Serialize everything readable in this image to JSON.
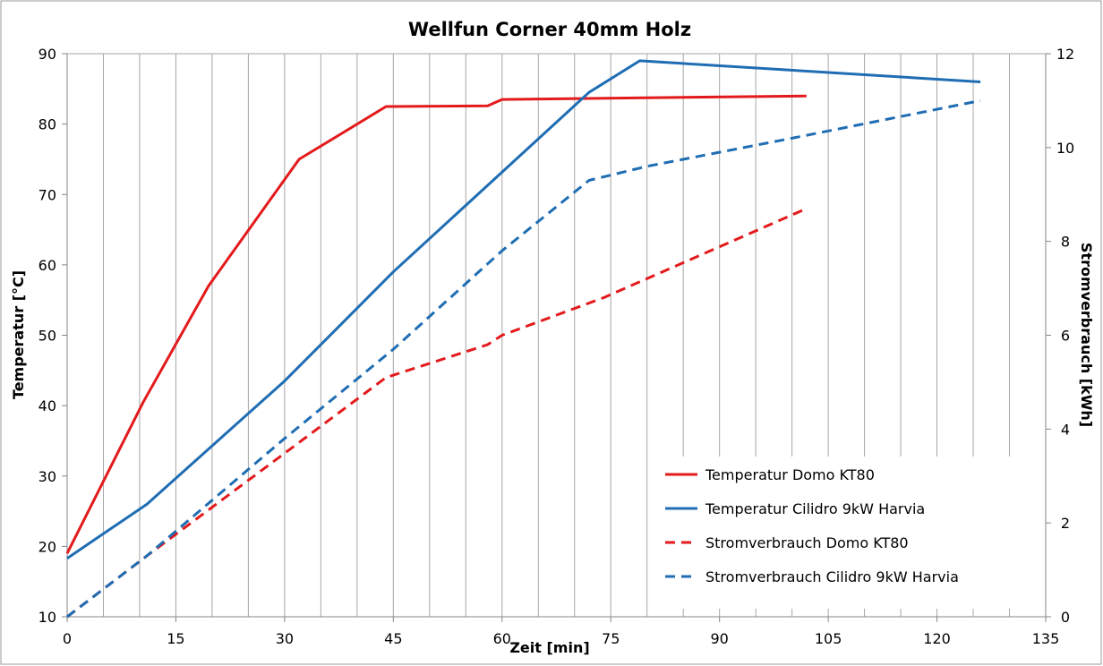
{
  "chart_data": {
    "type": "line",
    "title": "Wellfun Corner 40mm Holz",
    "xlabel": "Zeit [min]",
    "ylabel": "Temperatur  [°C]",
    "y2label": "Stromverbrauch  [kWh]",
    "xlim": [
      0,
      135
    ],
    "ylim": [
      10,
      90
    ],
    "y2lim": [
      0,
      12
    ],
    "xticks": [
      0,
      15,
      30,
      45,
      60,
      75,
      90,
      105,
      120,
      135
    ],
    "yticks": [
      10,
      20,
      30,
      40,
      50,
      60,
      70,
      80,
      90
    ],
    "y2ticks": [
      0,
      2,
      4,
      6,
      8,
      10,
      12
    ],
    "x_minor_step": 5,
    "grid": "vertical",
    "legend_position": "bottom-right",
    "series": [
      {
        "name": "Temperatur Domo KT80",
        "axis": "left",
        "color": "#e31a1c",
        "dash": "solid",
        "points": [
          [
            0,
            19
          ],
          [
            10.5,
            40.5
          ],
          [
            19.5,
            57
          ],
          [
            32,
            75
          ],
          [
            44,
            82.5
          ],
          [
            58,
            82.6
          ],
          [
            60,
            83.5
          ],
          [
            102,
            84
          ]
        ]
      },
      {
        "name": "Temperatur Cilidro 9kW Harvia",
        "axis": "left",
        "color": "#1f6db3",
        "dash": "solid",
        "points": [
          [
            0,
            18.3
          ],
          [
            11,
            26
          ],
          [
            30,
            43.5
          ],
          [
            45,
            59
          ],
          [
            72,
            84.5
          ],
          [
            79,
            89
          ],
          [
            126,
            86
          ]
        ]
      },
      {
        "name": "Stromverbrauch Domo KT80",
        "axis": "right",
        "color": "#e31a1c",
        "dash": "dashed",
        "points": [
          [
            0,
            0
          ],
          [
            11,
            1.3
          ],
          [
            31,
            3.6
          ],
          [
            44,
            5.1
          ],
          [
            58,
            5.8
          ],
          [
            60,
            6.0
          ],
          [
            74,
            6.8
          ],
          [
            102,
            8.7
          ]
        ]
      },
      {
        "name": "Stromverbrauch Cilidro 9kW Harvia",
        "axis": "right",
        "color": "#1f6db3",
        "dash": "dashed",
        "points": [
          [
            0,
            0
          ],
          [
            11,
            1.3
          ],
          [
            30,
            3.8
          ],
          [
            45,
            5.7
          ],
          [
            60,
            7.8
          ],
          [
            72,
            9.3
          ],
          [
            80,
            9.6
          ],
          [
            100,
            10.2
          ],
          [
            126,
            11
          ]
        ]
      }
    ]
  }
}
